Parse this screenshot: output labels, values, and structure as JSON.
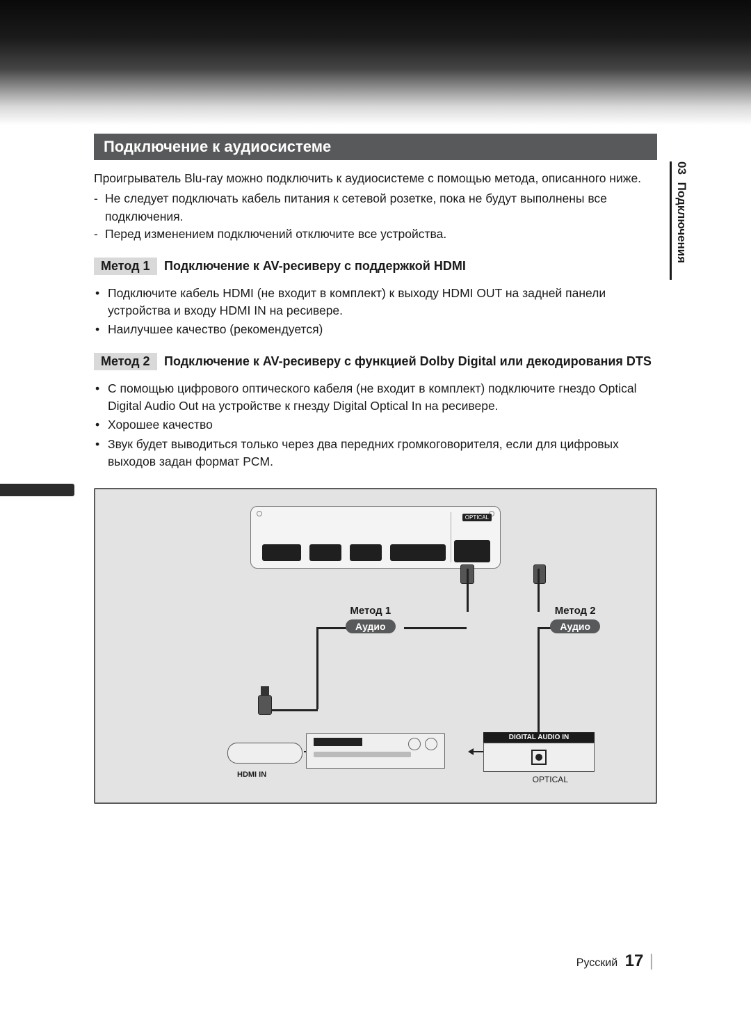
{
  "chapter": {
    "number": "03",
    "title": "Подключения"
  },
  "section_header": "Подключение к аудиосистеме",
  "intro": "Проигрыватель Blu-ray можно подключить к аудиосистеме с помощью метода, описанного ниже.",
  "precautions": [
    "Не следует подключать кабель питания к сетевой розетке, пока не будут выполнены все подключения.",
    "Перед изменением подключений отключите все устройства."
  ],
  "methods": [
    {
      "label": "Метод 1",
      "title": "Подключение к AV-ресиверу с поддержкой HDMI",
      "bullets": [
        "Подключите кабель HDMI (не входит в комплект) к выходу HDMI OUT на задней панели устройства и входу HDMI IN на ресивере.",
        "Наилучшее качество (рекомендуется)"
      ]
    },
    {
      "label": "Метод 2",
      "title": "Подключение к AV-ресиверу с функцией Dolby Digital или декодирования DTS",
      "bullets": [
        "С помощью цифрового оптического кабеля (не входит в комплект) подключите гнездо Optical Digital Audio Out на устройстве к гнезду Digital Optical In на ресивере.",
        "Хорошее качество",
        "Звук будет выводиться только через два передних громкоговорителя, если для цифровых выходов задан формат PCM."
      ]
    }
  ],
  "diagram": {
    "background_color": "#e3e3e3",
    "border_color": "#5a5a5a",
    "player_ports": {
      "optical_label": "OPTICAL"
    },
    "method1": {
      "title": "Метод 1",
      "badge": "Аудио"
    },
    "method2": {
      "title": "Метод 2",
      "badge": "Аудио"
    },
    "hdmi_in_label": "HDMI IN",
    "digital_audio_in_header": "DIGITAL AUDIO IN",
    "optical_label": "OPTICAL"
  },
  "footer": {
    "language": "Русский",
    "page": "17"
  },
  "colors": {
    "header_bg": "#58595b",
    "method_label_bg": "#d9d9d9",
    "text": "#1a1a1a"
  },
  "typography": {
    "body_fontsize_pt": 13,
    "header_fontsize_pt": 16,
    "method_title_fontsize_pt": 13.5
  }
}
